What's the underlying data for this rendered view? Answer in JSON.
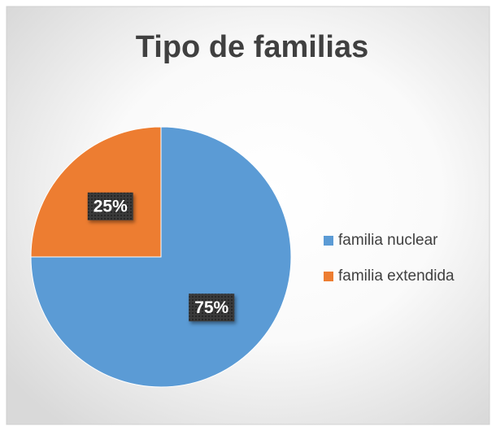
{
  "chart_data": {
    "type": "pie",
    "title": "Tipo de familias",
    "categories": [
      "familia nuclear",
      "familia extendida"
    ],
    "values": [
      75,
      25
    ],
    "value_labels": [
      "75%",
      "25%"
    ],
    "colors": [
      "#5b9bd5",
      "#ed7d31"
    ],
    "legend": "right"
  }
}
